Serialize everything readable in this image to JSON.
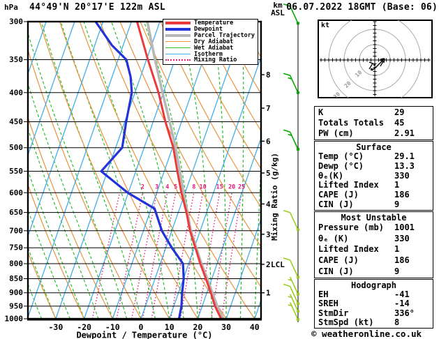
{
  "header": {
    "pressure_axis_unit": "hPa",
    "station_title": "44°49'N 20°17'E 122m ASL",
    "run_title": "06.07.2022 18GMT (Base: 06)",
    "altitude_axis_unit": "km ASL"
  },
  "legend": {
    "items": [
      {
        "label": "Temperature",
        "color": "#ec3a3a",
        "weight": 4,
        "style": "solid"
      },
      {
        "label": "Dewpoint",
        "color": "#2433d8",
        "weight": 4,
        "style": "solid"
      },
      {
        "label": "Parcel Trajectory",
        "color": "#b8b8b8",
        "weight": 4,
        "style": "solid"
      },
      {
        "label": "Dry Adiabat",
        "color": "#e8943c",
        "weight": 1.5,
        "style": "solid"
      },
      {
        "label": "Wet Adiabat",
        "color": "#2cbe2c",
        "weight": 1.5,
        "style": "solid"
      },
      {
        "label": "Isotherm",
        "color": "#41aee8",
        "weight": 1.5,
        "style": "solid"
      },
      {
        "label": "Mixing Ratio",
        "color": "#e8187c",
        "weight": 2,
        "style": "dotted"
      }
    ]
  },
  "chart_data": {
    "type": "skewt_log_p",
    "pressure_range": [
      300,
      1000
    ],
    "pressure_ticks": [
      300,
      350,
      400,
      450,
      500,
      550,
      600,
      650,
      700,
      750,
      800,
      850,
      900,
      950,
      1000
    ],
    "temp_ticks": [
      -30,
      -20,
      -10,
      0,
      10,
      20,
      30,
      40
    ],
    "temp_axis_label": "Dewpoint / Temperature (°C)",
    "mixing_axis_label": "Mixing Ratio (g/kg)",
    "isotherms": {
      "min": -120,
      "max": 40,
      "step": 10
    },
    "dry_adiabats": {
      "min": -40,
      "max": 150,
      "step": 10
    },
    "wet_adiabats": {
      "min": -40,
      "max": 45,
      "step": 5
    },
    "mixing_ratio_lines": [
      1,
      2,
      3,
      4,
      5,
      8,
      10,
      15,
      20,
      25
    ],
    "mixing_ratio_labeled": [
      2,
      3,
      4,
      5,
      8,
      10,
      15,
      20,
      25
    ],
    "km_ticks": [
      {
        "km": 1,
        "p": 900
      },
      {
        "km": 2,
        "p": 802
      },
      {
        "km": 3,
        "p": 710
      },
      {
        "km": 4,
        "p": 628
      },
      {
        "km": 5,
        "p": 554
      },
      {
        "km": 6,
        "p": 487
      },
      {
        "km": 7,
        "p": 426
      },
      {
        "km": 8,
        "p": 372
      }
    ],
    "lcl": {
      "label": "LCL",
      "p": 802
    },
    "temperature_profile": [
      [
        300,
        -38.0
      ],
      [
        350,
        -29.5
      ],
      [
        400,
        -21.7
      ],
      [
        450,
        -15.7
      ],
      [
        500,
        -9.7
      ],
      [
        550,
        -5.4
      ],
      [
        600,
        -1.3
      ],
      [
        650,
        2.9
      ],
      [
        700,
        6.4
      ],
      [
        750,
        10.4
      ],
      [
        800,
        14.1
      ],
      [
        850,
        17.9
      ],
      [
        900,
        21.4
      ],
      [
        950,
        24.5
      ],
      [
        1000,
        28.2
      ]
    ],
    "dewpoint_profile": [
      [
        300,
        -52.6
      ],
      [
        330,
        -44.0
      ],
      [
        350,
        -37.1
      ],
      [
        375,
        -33.5
      ],
      [
        400,
        -31.1
      ],
      [
        450,
        -29.5
      ],
      [
        500,
        -27.7
      ],
      [
        550,
        -32.2
      ],
      [
        600,
        -20.2
      ],
      [
        640,
        -8.8
      ],
      [
        700,
        -3.5
      ],
      [
        750,
        2.1
      ],
      [
        800,
        8.0
      ],
      [
        850,
        10.1
      ],
      [
        900,
        11.3
      ],
      [
        950,
        12.7
      ],
      [
        1000,
        13.4
      ]
    ],
    "parcel_profile": [
      [
        300,
        -34.4
      ],
      [
        350,
        -27.0
      ],
      [
        400,
        -20.3
      ],
      [
        450,
        -14.2
      ],
      [
        500,
        -8.9
      ],
      [
        550,
        -4.5
      ],
      [
        600,
        -0.5
      ],
      [
        650,
        3.2
      ],
      [
        700,
        6.7
      ],
      [
        750,
        10.7
      ],
      [
        800,
        14.5
      ],
      [
        850,
        18.4
      ],
      [
        900,
        21.9
      ],
      [
        950,
        25.3
      ],
      [
        1000,
        29.0
      ]
    ],
    "wind_barbs": [
      {
        "p": 302,
        "kt": 10,
        "color": "#00aa00"
      },
      {
        "p": 400,
        "kt": 15,
        "color": "#00aa00"
      },
      {
        "p": 503,
        "kt": 15,
        "color": "#00aa00"
      },
      {
        "p": 697,
        "kt": 10,
        "color": "#9ccc22"
      },
      {
        "p": 845,
        "kt": 10,
        "color": "#9ccc22"
      },
      {
        "p": 905,
        "kt": 5,
        "color": "#9ccc22"
      },
      {
        "p": 940,
        "kt": 10,
        "color": "#9ccc22"
      },
      {
        "p": 970,
        "kt": 5,
        "color": "#9ccc22"
      },
      {
        "p": 1003,
        "kt": 5,
        "color": "#9ccc22"
      }
    ],
    "colors": {
      "temperature": "#ec3a3a",
      "dewpoint": "#2433d8",
      "parcel": "#b8b8b8",
      "dry_adiabat": "#e8943c",
      "wet_adiabat": "#2cbe2c",
      "isotherm": "#41aee8",
      "mixing_ratio": "#e8187c",
      "grid": "#000000"
    }
  },
  "hodograph_plot": {
    "unit": "kt",
    "rings": [
      {
        "kt": 10,
        "label": "10"
      },
      {
        "kt": 20,
        "label": "20"
      },
      {
        "kt": 30,
        "label": "30"
      }
    ],
    "trace": [
      [
        533,
        101
      ],
      [
        540,
        95
      ],
      [
        551,
        84
      ]
    ]
  },
  "panel": {
    "indices": {
      "rows": [
        {
          "label": "K",
          "value": "29"
        },
        {
          "label": "Totals Totals",
          "value": "45"
        },
        {
          "label": "PW (cm)",
          "value": "2.91"
        }
      ]
    },
    "surface": {
      "title": "Surface",
      "rows": [
        {
          "label": "Temp (°C)",
          "value": "29.1"
        },
        {
          "label": "Dewp (°C)",
          "value": "13.3"
        },
        {
          "label": "θₑ(K)",
          "value": "330"
        },
        {
          "label": "Lifted Index",
          "value": "1"
        },
        {
          "label": "CAPE (J)",
          "value": "186"
        },
        {
          "label": "CIN (J)",
          "value": "9"
        }
      ]
    },
    "most_unstable": {
      "title": "Most Unstable",
      "rows": [
        {
          "label": "Pressure (mb)",
          "value": "1001"
        },
        {
          "label": "θₑ (K)",
          "value": "330"
        },
        {
          "label": "Lifted Index",
          "value": "1"
        },
        {
          "label": "CAPE (J)",
          "value": "186"
        },
        {
          "label": "CIN (J)",
          "value": "9"
        }
      ]
    },
    "hodograph": {
      "title": "Hodograph",
      "rows": [
        {
          "label": "EH",
          "value": "-41"
        },
        {
          "label": "SREH",
          "value": "-14"
        },
        {
          "label": "StmDir",
          "value": "336°"
        },
        {
          "label": "StmSpd (kt)",
          "value": "8"
        }
      ]
    }
  },
  "footer": {
    "credit": "© weatheronline.co.uk"
  }
}
